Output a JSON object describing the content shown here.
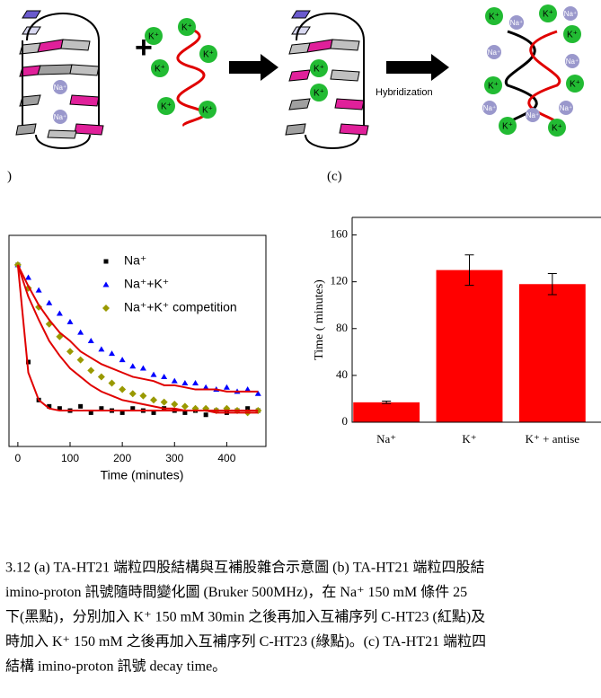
{
  "diagram": {
    "ions": [
      "Na⁺",
      "Na⁺",
      "K⁺",
      "K⁺",
      "K⁺",
      "K⁺",
      "K⁺",
      "K⁺",
      "K⁺",
      "K⁺",
      "K⁺",
      "Na⁺",
      "K⁺",
      "Na⁺",
      "K⁺",
      "Na⁺",
      "Na⁺",
      "K⁺",
      "K⁺",
      "Na⁺",
      "Na⁺",
      "Na⁺",
      "K⁺",
      "K⁺"
    ],
    "arrow_label": "Hybridization",
    "panel_labels": [
      ")",
      "(c)"
    ]
  },
  "chart_data": [
    {
      "type": "scatter",
      "xlabel": "Time (minutes)",
      "x": [
        0,
        20,
        40,
        60,
        80,
        100,
        120,
        140,
        160,
        180,
        200,
        220,
        240,
        260,
        280,
        300,
        320,
        340,
        360,
        380,
        400,
        420,
        440,
        460
      ],
      "xlim": [
        -17,
        475
      ],
      "xticks": [
        0,
        100,
        200,
        300,
        400
      ],
      "ylim": [
        0,
        1
      ],
      "legend": "upper right",
      "series": [
        {
          "name": "Na⁺",
          "color": "#000000",
          "marker": "square",
          "values": [
            0.86,
            0.4,
            0.22,
            0.19,
            0.18,
            0.17,
            0.19,
            0.16,
            0.18,
            0.17,
            0.16,
            0.18,
            0.17,
            0.16,
            0.18,
            0.17,
            0.16,
            0.17,
            0.15,
            0.17,
            0.16,
            0.17,
            0.18,
            0.17
          ]
        },
        {
          "name": "Na⁺+K⁺",
          "color": "#0000ff",
          "marker": "triangle",
          "values": [
            0.86,
            0.8,
            0.74,
            0.68,
            0.63,
            0.59,
            0.54,
            0.5,
            0.46,
            0.44,
            0.41,
            0.38,
            0.37,
            0.34,
            0.33,
            0.31,
            0.3,
            0.3,
            0.28,
            0.27,
            0.28,
            0.26,
            0.27,
            0.25
          ]
        },
        {
          "name": "Na⁺+K⁺ competition",
          "color": "#999900",
          "marker": "diamond",
          "values": [
            0.86,
            0.75,
            0.66,
            0.58,
            0.52,
            0.45,
            0.41,
            0.36,
            0.33,
            0.3,
            0.27,
            0.25,
            0.24,
            0.22,
            0.21,
            0.2,
            0.19,
            0.18,
            0.18,
            0.17,
            0.18,
            0.17,
            0.16,
            0.17
          ]
        },
        {
          "type": "line",
          "color": "#e00000",
          "values": [
            0.86,
            0.35,
            0.22,
            0.18,
            0.17,
            0.17,
            0.17,
            0.17,
            0.17,
            0.17,
            0.17,
            0.17,
            0.17,
            0.17,
            0.17,
            0.17,
            0.17,
            0.17,
            0.17,
            0.17,
            0.17,
            0.17,
            0.17,
            0.17
          ]
        },
        {
          "type": "line",
          "color": "#e00000",
          "values": [
            0.86,
            0.76,
            0.67,
            0.6,
            0.54,
            0.5,
            0.45,
            0.42,
            0.39,
            0.37,
            0.35,
            0.33,
            0.32,
            0.31,
            0.29,
            0.29,
            0.28,
            0.27,
            0.27,
            0.27,
            0.26,
            0.26,
            0.26,
            0.26
          ]
        },
        {
          "type": "line",
          "color": "#e00000",
          "values": [
            0.86,
            0.71,
            0.6,
            0.5,
            0.43,
            0.37,
            0.33,
            0.29,
            0.26,
            0.24,
            0.22,
            0.21,
            0.2,
            0.19,
            0.18,
            0.18,
            0.17,
            0.17,
            0.17,
            0.16,
            0.16,
            0.16,
            0.16,
            0.16
          ]
        }
      ]
    },
    {
      "type": "bar",
      "ylabel": "Time ( minutes)",
      "categories": [
        "Na⁺",
        "K⁺",
        "K⁺ + antise"
      ],
      "values": [
        17,
        130,
        118
      ],
      "errors": [
        1,
        13,
        9
      ],
      "color": "#ff0000",
      "ylim": [
        0,
        175
      ],
      "yticks": [
        0,
        40,
        80,
        120,
        160
      ]
    }
  ],
  "caption": [
    "3.12 (a) TA-HT21 端粒四股結構與互補股雜合示意圖 (b) TA-HT21 端粒四股結",
    "imino-proton 訊號隨時間變化圖 (Bruker 500MHz)，在 Na⁺ 150 mM 條件 25",
    "下(黑點)，分別加入 K⁺ 150 mM 30min 之後再加入互補序列 C-HT23 (紅點)及",
    "時加入 K⁺ 150 mM 之後再加入互補序列 C-HT23 (綠點)。(c) TA-HT21 端粒四",
    "結構 imino-proton 訊號 decay time。"
  ]
}
